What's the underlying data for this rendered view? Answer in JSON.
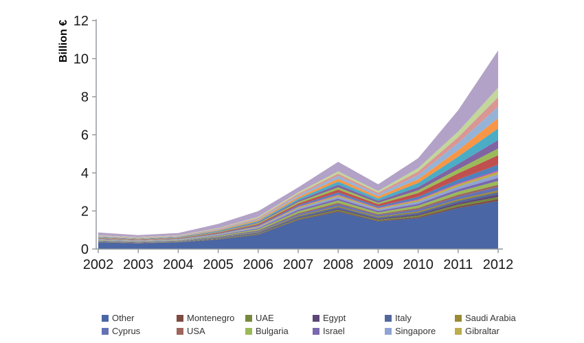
{
  "chart_data": {
    "type": "area",
    "stacked": true,
    "ylabel": "Billion €",
    "x": [
      2002,
      2003,
      2004,
      2005,
      2006,
      2007,
      2008,
      2009,
      2010,
      2011,
      2012
    ],
    "ylim": [
      0,
      12
    ],
    "yticks": [
      0,
      2,
      4,
      6,
      8,
      10,
      12
    ],
    "grid": false,
    "legend_position": "bottom",
    "legend_entries": [
      "Other",
      "Montenegro",
      "UAE",
      "Egypt",
      "Italy",
      "Saudi Arabia",
      "Cyprus",
      "USA",
      "Bulgaria",
      "Israel",
      "Singapore",
      "Gibraltar"
    ],
    "legend_note": "Legend displays 12 named series; the stack also contains additional unlabeled colored series above them.",
    "axis_color": "#8F959B",
    "series": [
      {
        "name": "Other",
        "color": "#4A66A4",
        "in_legend": true,
        "values": [
          0.35,
          0.3,
          0.35,
          0.5,
          0.75,
          1.52,
          1.95,
          1.45,
          1.62,
          2.15,
          2.52
        ]
      },
      {
        "name": "Montenegro",
        "color": "#7E4B41",
        "in_legend": true,
        "values": [
          0.01,
          0.01,
          0.01,
          0.02,
          0.02,
          0.03,
          0.05,
          0.04,
          0.06,
          0.08,
          0.1
        ]
      },
      {
        "name": "UAE",
        "color": "#76893D",
        "in_legend": true,
        "values": [
          0.02,
          0.01,
          0.02,
          0.02,
          0.03,
          0.05,
          0.06,
          0.05,
          0.08,
          0.1,
          0.12
        ]
      },
      {
        "name": "Egypt",
        "color": "#5D4776",
        "in_legend": true,
        "values": [
          0.01,
          0.01,
          0.01,
          0.02,
          0.03,
          0.04,
          0.06,
          0.05,
          0.07,
          0.1,
          0.12
        ]
      },
      {
        "name": "Italy",
        "color": "#53679E",
        "in_legend": true,
        "values": [
          0.02,
          0.02,
          0.02,
          0.03,
          0.04,
          0.06,
          0.08,
          0.06,
          0.08,
          0.1,
          0.12
        ]
      },
      {
        "name": "Saudi Arabia",
        "color": "#9A8A33",
        "in_legend": true,
        "values": [
          0.01,
          0.01,
          0.01,
          0.02,
          0.03,
          0.05,
          0.06,
          0.05,
          0.07,
          0.08,
          0.1
        ]
      },
      {
        "name": "Cyprus",
        "color": "#6372B5",
        "in_legend": true,
        "values": [
          0.02,
          0.02,
          0.02,
          0.03,
          0.05,
          0.08,
          0.1,
          0.08,
          0.1,
          0.14,
          0.18
        ]
      },
      {
        "name": "USA",
        "color": "#9E655C",
        "in_legend": true,
        "values": [
          0.01,
          0.01,
          0.01,
          0.02,
          0.03,
          0.05,
          0.07,
          0.05,
          0.08,
          0.1,
          0.12
        ]
      },
      {
        "name": "Bulgaria",
        "color": "#9ABA58",
        "in_legend": true,
        "values": [
          0.02,
          0.02,
          0.02,
          0.04,
          0.06,
          0.1,
          0.12,
          0.09,
          0.12,
          0.16,
          0.2
        ]
      },
      {
        "name": "Israel",
        "color": "#7A68AE",
        "in_legend": true,
        "values": [
          0.01,
          0.01,
          0.01,
          0.03,
          0.05,
          0.08,
          0.1,
          0.08,
          0.1,
          0.13,
          0.16
        ]
      },
      {
        "name": "Singapore",
        "color": "#8FA3D4",
        "in_legend": true,
        "values": [
          0.02,
          0.02,
          0.02,
          0.03,
          0.05,
          0.08,
          0.1,
          0.08,
          0.11,
          0.14,
          0.18
        ]
      },
      {
        "name": "Gibraltar",
        "color": "#BCAD4D",
        "in_legend": true,
        "values": [
          0.01,
          0.01,
          0.01,
          0.02,
          0.04,
          0.06,
          0.08,
          0.06,
          0.09,
          0.12,
          0.15
        ]
      },
      {
        "name": "",
        "color": "#BC4FBC",
        "in_legend": false,
        "values": [
          0.01,
          0.01,
          0.01,
          0.01,
          0.02,
          0.03,
          0.04,
          0.03,
          0.04,
          0.05,
          0.06
        ]
      },
      {
        "name": "",
        "color": "#4F81BD",
        "in_legend": false,
        "values": [
          0.02,
          0.01,
          0.02,
          0.03,
          0.05,
          0.07,
          0.1,
          0.07,
          0.12,
          0.2,
          0.3
        ]
      },
      {
        "name": "",
        "color": "#C0504D",
        "in_legend": false,
        "values": [
          0.03,
          0.02,
          0.03,
          0.04,
          0.06,
          0.09,
          0.15,
          0.11,
          0.2,
          0.32,
          0.5
        ]
      },
      {
        "name": "",
        "color": "#9BBB59",
        "in_legend": false,
        "values": [
          0.02,
          0.02,
          0.02,
          0.03,
          0.05,
          0.08,
          0.12,
          0.08,
          0.14,
          0.22,
          0.35
        ]
      },
      {
        "name": "",
        "color": "#8064A2",
        "in_legend": false,
        "values": [
          0.02,
          0.02,
          0.02,
          0.03,
          0.05,
          0.08,
          0.14,
          0.1,
          0.17,
          0.28,
          0.45
        ]
      },
      {
        "name": "",
        "color": "#4BACC6",
        "in_legend": false,
        "values": [
          0.02,
          0.02,
          0.02,
          0.04,
          0.06,
          0.09,
          0.16,
          0.12,
          0.22,
          0.38,
          0.6
        ]
      },
      {
        "name": "",
        "color": "#F79646",
        "in_legend": false,
        "values": [
          0.02,
          0.02,
          0.02,
          0.04,
          0.06,
          0.09,
          0.15,
          0.11,
          0.2,
          0.34,
          0.55
        ]
      },
      {
        "name": "",
        "color": "#95B3D7",
        "in_legend": false,
        "values": [
          0.03,
          0.02,
          0.03,
          0.04,
          0.06,
          0.09,
          0.15,
          0.11,
          0.22,
          0.38,
          0.6
        ]
      },
      {
        "name": "",
        "color": "#D99694",
        "in_legend": false,
        "values": [
          0.02,
          0.02,
          0.02,
          0.03,
          0.05,
          0.08,
          0.12,
          0.09,
          0.18,
          0.3,
          0.5
        ]
      },
      {
        "name": "",
        "color": "#C3D69B",
        "in_legend": false,
        "values": [
          0.02,
          0.02,
          0.02,
          0.03,
          0.05,
          0.08,
          0.12,
          0.09,
          0.18,
          0.3,
          0.5
        ]
      },
      {
        "name": "",
        "color": "#B3A2C7",
        "in_legend": false,
        "values": [
          0.15,
          0.1,
          0.12,
          0.22,
          0.3,
          0.26,
          0.5,
          0.35,
          0.52,
          1.12,
          1.95
        ]
      }
    ]
  }
}
